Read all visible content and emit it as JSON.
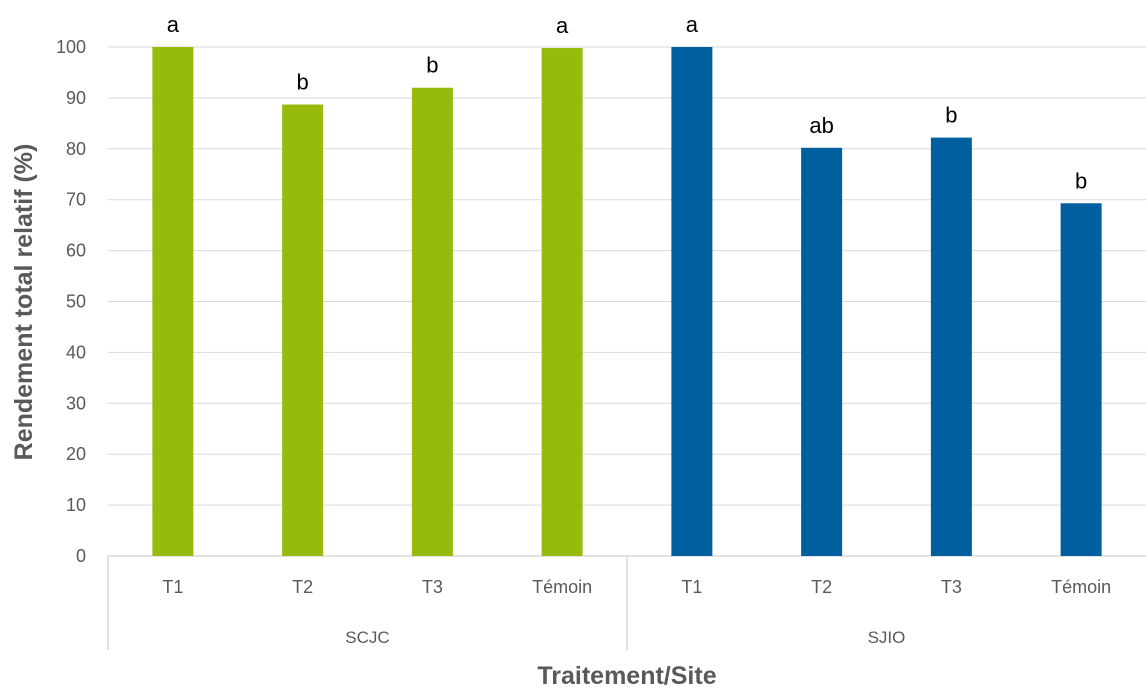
{
  "chart_data": {
    "type": "bar",
    "title": "",
    "xlabel": "Traitement/Site",
    "ylabel": "Rendement total relatif (%)",
    "ylim": [
      0,
      100
    ],
    "yticks": [
      "0",
      "10",
      "20",
      "30",
      "40",
      "50",
      "60",
      "70",
      "80",
      "90",
      "100"
    ],
    "grid": true,
    "legend": "none",
    "groups": [
      {
        "name": "SCJC",
        "color": "#97BB0D",
        "categories": [
          "T1",
          "T2",
          "T3",
          "Témoin"
        ],
        "values": [
          100,
          88.7,
          92,
          99.8
        ],
        "letters": [
          "a",
          "b",
          "b",
          "a"
        ]
      },
      {
        "name": "SJIO",
        "color": "#005F9E",
        "categories": [
          "T1",
          "T2",
          "T3",
          "Témoin"
        ],
        "values": [
          100,
          80.2,
          82.2,
          69.3
        ],
        "letters": [
          "a",
          "ab",
          "b",
          "b"
        ]
      }
    ]
  }
}
